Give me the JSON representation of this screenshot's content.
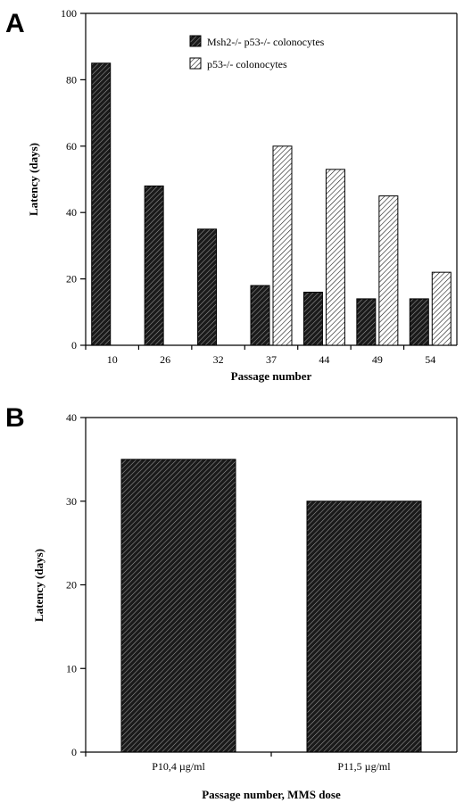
{
  "chart_data": [
    {
      "panel_label": "A",
      "type": "bar",
      "xlabel": "Passage number",
      "ylabel": "Latency (days)",
      "ylim": [
        0,
        100
      ],
      "yticks": [
        "0",
        "20",
        "40",
        "60",
        "80",
        "100"
      ],
      "categories": [
        "10",
        "26",
        "32",
        "37",
        "44",
        "49",
        "54"
      ],
      "series": [
        {
          "name": "Msh2-/- p53-/- colonocytes",
          "pattern": "dark-hatch",
          "values": [
            85,
            48,
            35,
            18,
            16,
            14,
            14
          ]
        },
        {
          "name": "p53-/- colonocytes",
          "pattern": "light-hatch",
          "values": [
            null,
            null,
            null,
            60,
            53,
            45,
            22
          ]
        }
      ],
      "legend_position": "top-right",
      "grid": false
    },
    {
      "panel_label": "B",
      "type": "bar",
      "xlabel": "Passage number, MMS dose",
      "ylabel": "Latency (days)",
      "ylim": [
        0,
        40
      ],
      "yticks": [
        "0",
        "10",
        "20",
        "30",
        "40"
      ],
      "categories": [
        "P10,4 µg/ml",
        "P11,5 µg/ml"
      ],
      "series": [
        {
          "pattern": "dark-hatch",
          "values": [
            35,
            30
          ]
        }
      ],
      "grid": false
    }
  ]
}
